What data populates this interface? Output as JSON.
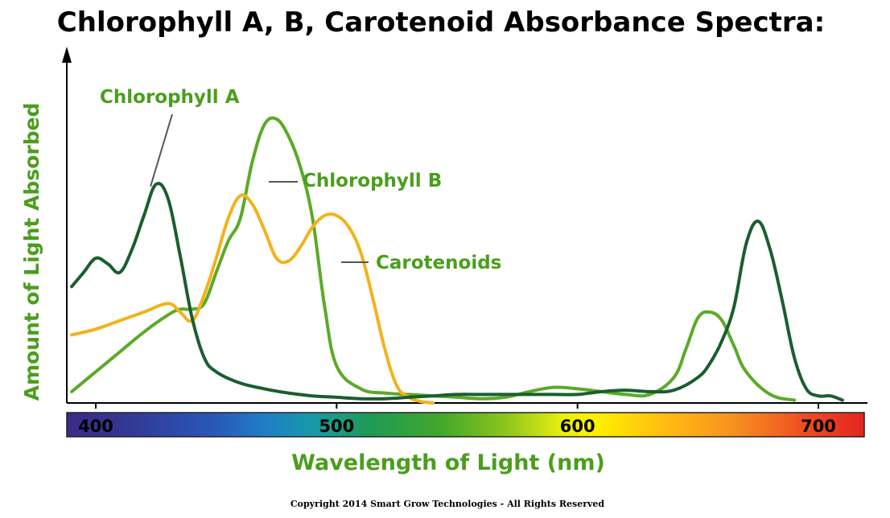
{
  "title": "Chlorophyll A, B, Carotenoid Absorbance Spectra:",
  "copyright": "Copyright 2014 Smart Grow Technologies - All Rights Reserved",
  "colors": {
    "chlorophyll_a": "#1a5e2f",
    "chlorophyll_b": "#5aaa28",
    "carotenoids": "#f3b21b",
    "label_green": "#4a9e1c",
    "leader": "#555555"
  },
  "chart_data": {
    "type": "line",
    "title": "Chlorophyll A, B, Carotenoid Absorbance Spectra:",
    "xlabel": "Wavelength of Light (nm)",
    "ylabel": "Amount of Light Absorbed",
    "xlim": [
      390,
      715
    ],
    "ylim": [
      0,
      100
    ],
    "x_ticks": [
      "400",
      "500",
      "600",
      "700"
    ],
    "x_tick_values": [
      400,
      500,
      600,
      700
    ],
    "x_axis_color_bar": "visible spectrum gradient",
    "grid": false,
    "legend": "none (direct annotations)",
    "series": [
      {
        "name": "Chlorophyll A",
        "color": "#1a5e2f",
        "x": [
          390,
          395,
          400,
          405,
          410,
          415,
          420,
          425,
          430,
          435,
          440,
          445,
          450,
          460,
          470,
          480,
          490,
          500,
          510,
          520,
          530,
          540,
          550,
          560,
          570,
          580,
          590,
          600,
          610,
          620,
          630,
          640,
          650,
          655,
          660,
          665,
          670,
          675,
          680,
          685,
          690,
          695,
          700,
          705,
          710
        ],
        "y": [
          41,
          46,
          51,
          49,
          46,
          54,
          66,
          77,
          72,
          52,
          30,
          16,
          11,
          7,
          5,
          3.5,
          2.5,
          2,
          1.5,
          1.5,
          2,
          2.5,
          3,
          3,
          3,
          3,
          3,
          3,
          4,
          4.5,
          4,
          4.5,
          9,
          14,
          22,
          34,
          56,
          64,
          54,
          36,
          16,
          5,
          2.5,
          2.5,
          1
        ]
      },
      {
        "name": "Chlorophyll B",
        "color": "#5aaa28",
        "x": [
          390,
          400,
          410,
          420,
          430,
          435,
          440,
          445,
          450,
          455,
          460,
          465,
          470,
          475,
          480,
          485,
          490,
          495,
          500,
          510,
          520,
          530,
          540,
          550,
          560,
          570,
          580,
          590,
          600,
          610,
          620,
          630,
          640,
          645,
          650,
          655,
          660,
          665,
          670,
          680,
          690
        ],
        "y": [
          4,
          11,
          18,
          25,
          31,
          33,
          33,
          35,
          46,
          57,
          65,
          85,
          98,
          100,
          94,
          83,
          65,
          34,
          13,
          5,
          3.5,
          3,
          2.5,
          2,
          1.5,
          2,
          4,
          5.5,
          5,
          4,
          3,
          3,
          9,
          19,
          30,
          32,
          29,
          20,
          11,
          3,
          1
        ]
      },
      {
        "name": "Carotenoids",
        "color": "#f3b21b",
        "x": [
          390,
          400,
          410,
          420,
          430,
          435,
          440,
          445,
          450,
          455,
          460,
          465,
          470,
          475,
          480,
          485,
          490,
          495,
          500,
          505,
          510,
          515,
          520,
          525,
          530,
          535,
          540
        ],
        "y": [
          24,
          26,
          29,
          32,
          35,
          32,
          29,
          38,
          51,
          65,
          73,
          70,
          61,
          51,
          50,
          55,
          62,
          66,
          66,
          62,
          53,
          37,
          19,
          6,
          2,
          0.5,
          0
        ]
      }
    ],
    "annotations": [
      {
        "text": "Chlorophyll A",
        "series": "Chlorophyll A"
      },
      {
        "text": "Chlorophyll B",
        "series": "Chlorophyll B"
      },
      {
        "text": "Carotenoids",
        "series": "Carotenoids"
      }
    ]
  }
}
